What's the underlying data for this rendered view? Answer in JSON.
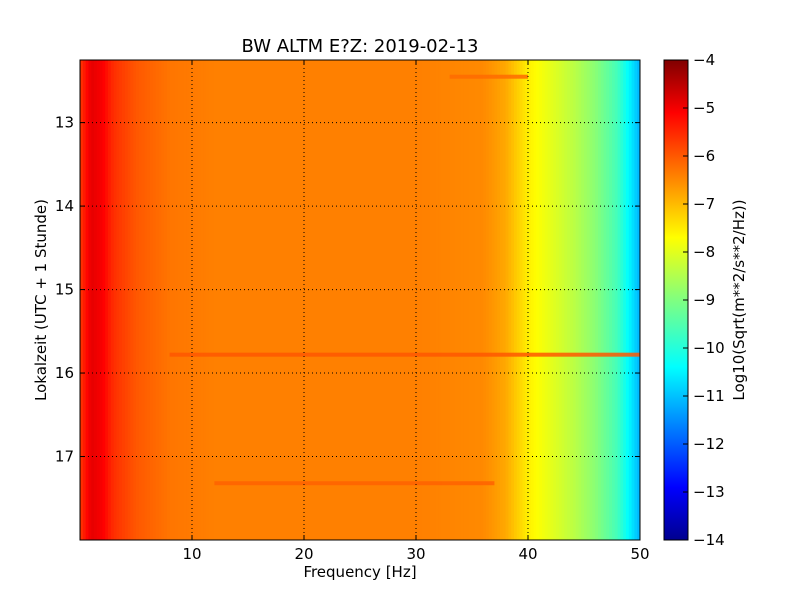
{
  "chart_data": {
    "type": "heatmap",
    "title": "BW ALTM E?Z: 2019-02-13",
    "xlabel": "Frequency [Hz]",
    "ylabel": "Lokalzeit (UTC + 1 Stunde)",
    "xlim": [
      0,
      50
    ],
    "ylim": [
      12.25,
      18.0
    ],
    "x_ticks": [
      10,
      20,
      30,
      40,
      50
    ],
    "x_tick_labels": [
      "10",
      "20",
      "30",
      "40",
      "50"
    ],
    "y_ticks": [
      13,
      14,
      15,
      16,
      17
    ],
    "y_tick_labels": [
      "13",
      "14",
      "15",
      "16",
      "17"
    ],
    "y_inverted": true,
    "grid": true,
    "colorbar": {
      "label": "Log10(Sqrt(m**2/s**2/Hz))",
      "range": [
        -14,
        -4
      ],
      "ticks": [
        -4,
        -5,
        -6,
        -7,
        -8,
        -9,
        -10,
        -11,
        -12,
        -13,
        -14
      ],
      "tick_labels": [
        "−4",
        "−5",
        "−6",
        "−7",
        "−8",
        "−9",
        "−10",
        "−11",
        "−12",
        "−13",
        "−14"
      ],
      "colormap": "jet"
    },
    "spectral_profile": {
      "frequency_hz": [
        0,
        1,
        2,
        3,
        5,
        8,
        12,
        20,
        30,
        36,
        38,
        40,
        42,
        44,
        46,
        48,
        49,
        50
      ],
      "log10_amplitude": [
        -5.8,
        -5.0,
        -5.2,
        -5.7,
        -6.1,
        -6.4,
        -6.5,
        -6.5,
        -6.5,
        -6.6,
        -6.9,
        -7.6,
        -8.0,
        -8.4,
        -8.9,
        -9.6,
        -10.3,
        -11.0
      ]
    },
    "events": [
      {
        "time_h": 15.78,
        "freq_range_hz": [
          8,
          50
        ],
        "log10_amplitude": -6.1
      },
      {
        "time_h": 17.32,
        "freq_range_hz": [
          12,
          37
        ],
        "log10_amplitude": -6.2
      },
      {
        "time_h": 12.45,
        "freq_range_hz": [
          33,
          40
        ],
        "log10_amplitude": -6.3
      }
    ]
  }
}
